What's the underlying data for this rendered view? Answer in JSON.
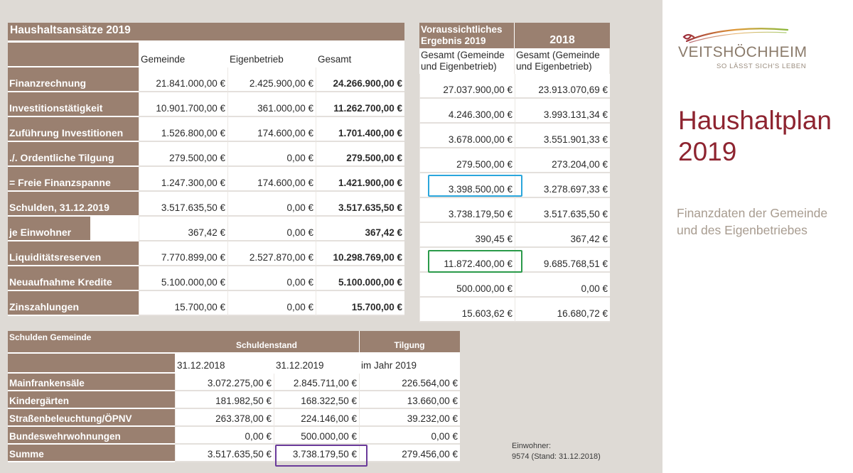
{
  "brand": {
    "name": "VEITSHÖCHHEIM",
    "slogan": "SO LÄSST SICH'S LEBEN",
    "title_line1": "Haushaltplan",
    "title_line2": "2019",
    "subtitle_line1": "Finanzdaten der Gemeinde",
    "subtitle_line2": "und des Eigenbetriebes"
  },
  "main_table": {
    "title": "Haushaltsansätze 2019",
    "col_gemeinde": "Gemeinde",
    "col_eigenbetrieb": "Eigenbetrieb",
    "col_gesamt": "Gesamt",
    "rows": [
      {
        "label": "Finanzrechnung",
        "gemeinde": "21.841.000,00 €",
        "eigenbetrieb": "2.425.900,00 €",
        "gesamt": "24.266.900,00 €"
      },
      {
        "label": "Investitionstätigkeit",
        "gemeinde": "10.901.700,00 €",
        "eigenbetrieb": "361.000,00 €",
        "gesamt": "11.262.700,00 €"
      },
      {
        "label": "Zuführung Investitionen",
        "gemeinde": "1.526.800,00 €",
        "eigenbetrieb": "174.600,00 €",
        "gesamt": "1.701.400,00 €"
      },
      {
        "label": "./. Ordentliche Tilgung",
        "gemeinde": "279.500,00 €",
        "eigenbetrieb": "0,00 €",
        "gesamt": "279.500,00 €"
      },
      {
        "label": "= Freie Finanzspanne",
        "gemeinde": "1.247.300,00 €",
        "eigenbetrieb": "174.600,00 €",
        "gesamt": "1.421.900,00 €"
      },
      {
        "label": "Schulden, 31.12.2019",
        "gemeinde": "3.517.635,50 €",
        "eigenbetrieb": "0,00 €",
        "gesamt": "3.517.635,50 €"
      },
      {
        "label": "je Einwohner",
        "gemeinde": "367,42 €",
        "eigenbetrieb": "0,00 €",
        "gesamt": "367,42 €"
      },
      {
        "label": "Liquiditätsreserven",
        "gemeinde": "7.770.899,00 €",
        "eigenbetrieb": "2.527.870,00 €",
        "gesamt": "10.298.769,00 €"
      },
      {
        "label": "Neuaufnahme Kredite",
        "gemeinde": "5.100.000,00 €",
        "eigenbetrieb": "0,00 €",
        "gesamt": "5.100.000,00 €"
      },
      {
        "label": "Zinszahlungen",
        "gemeinde": "15.700,00 €",
        "eigenbetrieb": "0,00 €",
        "gesamt": "15.700,00 €"
      }
    ]
  },
  "forecast_table": {
    "col1_header": "Voraussichtliches Ergebnis 2019",
    "col2_header": "2018",
    "col1_sub": "Gesamt (Gemeinde und Eigenbetrieb)",
    "col2_sub": "Gesamt (Gemeinde und Eigenbetrieb)",
    "rows": [
      {
        "ergebnis_2019": "27.037.900,00 €",
        "y2018": "23.913.070,69 €"
      },
      {
        "ergebnis_2019": "4.246.300,00 €",
        "y2018": "3.993.131,34 €"
      },
      {
        "ergebnis_2019": "3.678.000,00 €",
        "y2018": "3.551.901,33 €"
      },
      {
        "ergebnis_2019": "279.500,00 €",
        "y2018": "273.204,00 €"
      },
      {
        "ergebnis_2019": "3.398.500,00 €",
        "y2018": "3.278.697,33 €"
      },
      {
        "ergebnis_2019": "3.738.179,50 €",
        "y2018": "3.517.635,50 €"
      },
      {
        "ergebnis_2019": "390,45 €",
        "y2018": "367,42 €"
      },
      {
        "ergebnis_2019": "11.872.400,00 €",
        "y2018": "9.685.768,51 €"
      },
      {
        "ergebnis_2019": "500.000,00 €",
        "y2018": "0,00 €"
      },
      {
        "ergebnis_2019": "15.603,62 €",
        "y2018": "16.680,72 €"
      }
    ]
  },
  "debt_table": {
    "title": "Schulden Gemeinde",
    "schuldenstand": "Schuldenstand",
    "tilgung": "Tilgung",
    "date1": "31.12.2018",
    "date2": "31.12.2019",
    "year": "im Jahr 2019",
    "rows": [
      {
        "label": "Mainfrankensäle",
        "d2018": "3.072.275,00 €",
        "d2019": "2.845.711,00 €",
        "tilgung": "226.564,00 €"
      },
      {
        "label": "Kindergärten",
        "d2018": "181.982,50 €",
        "d2019": "168.322,50 €",
        "tilgung": "13.660,00 €"
      },
      {
        "label": "Straßenbeleuchtung/ÖPNV",
        "d2018": "263.378,00 €",
        "d2019": "224.146,00 €",
        "tilgung": "39.232,00 €"
      },
      {
        "label": "Bundeswehrwohnungen",
        "d2018": "0,00 €",
        "d2019": "500.000,00 €",
        "tilgung": "0,00 €"
      },
      {
        "label": "Summe",
        "d2018": "3.517.635,50 €",
        "d2019": "3.738.179,50 €",
        "tilgung": "279.456,00 €"
      }
    ]
  },
  "einwohner": {
    "label": "Einwohner:",
    "value": "9574 (Stand: 31.12.2018)"
  },
  "colors": {
    "label_band": "#9a8070",
    "title_red": "#8e2430",
    "highlight_blue": "#2aa6dc",
    "highlight_green": "#2a9a4a",
    "highlight_purple": "#6a3a9a"
  }
}
